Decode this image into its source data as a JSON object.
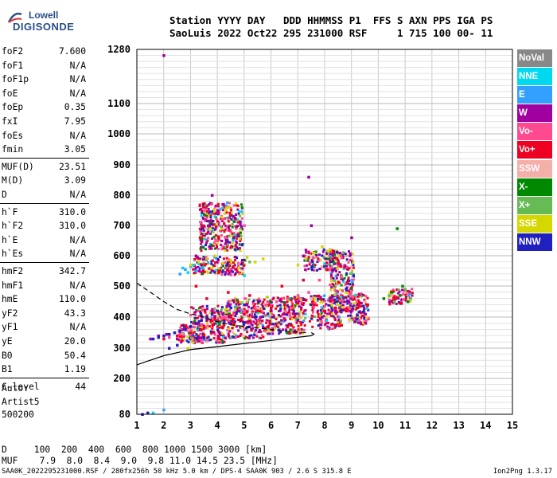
{
  "logo": {
    "line1": "Lowell",
    "line2": "DIGISONDE"
  },
  "header": {
    "line1": "Station YYYY DAY   DDD HHMMSS P1  FFS S AXN PPS IGA PS",
    "line2": "SaoLuis 2022 Oct22 295 231000 RSF     1 715 100 00- 11"
  },
  "params": [
    {
      "k": "foF2",
      "v": "7.600"
    },
    {
      "k": "foF1",
      "v": "N/A"
    },
    {
      "k": "foF1p",
      "v": "N/A"
    },
    {
      "k": "foE",
      "v": "N/A"
    },
    {
      "k": "foEp",
      "v": "0.35"
    },
    {
      "k": "fxI",
      "v": "7.95"
    },
    {
      "k": "foEs",
      "v": "N/A"
    },
    {
      "k": "fmin",
      "v": "3.05"
    },
    {
      "k": "MUF(D)",
      "v": "23.51"
    },
    {
      "k": "M(D)",
      "v": "3.09"
    },
    {
      "k": "D",
      "v": "N/A"
    },
    {
      "k": "h`F",
      "v": "310.0"
    },
    {
      "k": "h`F2",
      "v": "310.0"
    },
    {
      "k": "h`E",
      "v": "N/A"
    },
    {
      "k": "h`Es",
      "v": "N/A"
    },
    {
      "k": "hmF2",
      "v": "342.7"
    },
    {
      "k": "hmF1",
      "v": "N/A"
    },
    {
      "k": "hmE",
      "v": "110.0"
    },
    {
      "k": "yF2",
      "v": "43.3"
    },
    {
      "k": "yF1",
      "v": "N/A"
    },
    {
      "k": "yE",
      "v": "20.0"
    },
    {
      "k": "B0",
      "v": "50.4"
    },
    {
      "k": "B1",
      "v": "1.19"
    },
    {
      "k": "C-level",
      "v": "44"
    }
  ],
  "auto": {
    "line1": "Auto:",
    "line2": "Artist5",
    "line3": "500200"
  },
  "legend": [
    {
      "label": "NoVal",
      "color": "#888888"
    },
    {
      "label": "NNE",
      "color": "#00d8f0"
    },
    {
      "label": "E",
      "color": "#33a0ff"
    },
    {
      "label": "W",
      "color": "#a000a0"
    },
    {
      "label": "Vo-",
      "color": "#ff4a90"
    },
    {
      "label": "Vo+",
      "color": "#ee0022"
    },
    {
      "label": "SSW",
      "color": "#f4b0a8"
    },
    {
      "label": "X-",
      "color": "#008800"
    },
    {
      "label": "X+",
      "color": "#66bb55"
    },
    {
      "label": "SSE",
      "color": "#d6d600"
    },
    {
      "label": "NNW",
      "color": "#2020c0"
    }
  ],
  "dmuf": {
    "d_line": "D     100  200  400  600  800 1000 1500 3000 [km]",
    "muf_line": "MUF    7.9  8.0  8.4  9.0  9.8 11.0 14.5 23.5 [MHz]"
  },
  "footer": {
    "left": "SAA0K_2022295231000.RSF / 280fx256h 50 kHz 5.0 km / DPS-4 SAA0K 903 / 2.6 S 315.8 E",
    "right": "Ion2Png 1.3.17"
  },
  "chart_data": {
    "type": "scatter",
    "title": "",
    "xlabel": "",
    "ylabel": "",
    "x_ticks": [
      1,
      2,
      3,
      4,
      5,
      6,
      7,
      8,
      9,
      10,
      11,
      12,
      13,
      14,
      15
    ],
    "y_ticks": [
      80,
      200,
      300,
      400,
      500,
      600,
      700,
      800,
      900,
      1000,
      1100,
      1280
    ],
    "xlim": [
      1,
      15
    ],
    "ylim": [
      80,
      1280
    ],
    "grid": true,
    "series": [
      {
        "name": "NNE",
        "color": "#00d8f0",
        "x": [
          2.7,
          2.9,
          3.1,
          1.6,
          5.0
        ],
        "y": [
          560,
          545,
          570,
          85,
          535
        ]
      },
      {
        "name": "E",
        "color": "#33a0ff",
        "x": [
          2.8,
          3.0,
          3.2,
          2.6,
          2.0,
          3.4
        ],
        "y": [
          555,
          565,
          550,
          540,
          95,
          560
        ]
      },
      {
        "name": "W",
        "color": "#a000a0",
        "x": [
          1.5,
          1.8,
          2.1,
          2.4,
          2.7,
          3.0,
          3.3,
          3.6,
          3.9,
          4.2,
          4.5,
          4.8,
          5.1,
          5.4,
          3.7,
          4.0,
          4.3,
          4.6,
          3.4,
          3.8,
          4.2,
          2.0,
          2.5,
          3.2,
          5.6,
          6.0,
          6.5,
          7.0,
          7.4,
          7.9,
          8.4,
          8.9,
          9.0,
          7.2,
          7.5
        ],
        "y": [
          330,
          340,
          345,
          350,
          360,
          370,
          380,
          390,
          400,
          410,
          380,
          420,
          440,
          430,
          700,
          750,
          640,
          730,
          650,
          800,
          770,
          1260,
          330,
          600,
          400,
          420,
          410,
          390,
          860,
          400,
          420,
          450,
          660,
          600,
          700
        ]
      },
      {
        "name": "Vo-",
        "color": "#ff4a90",
        "x": [
          2.2,
          2.6,
          3.0,
          3.4,
          3.8,
          4.2,
          4.6,
          5.0,
          5.4,
          5.8,
          6.2,
          6.6,
          7.0,
          7.4,
          7.8,
          8.2,
          8.6,
          4.0,
          4.5,
          5.0
        ],
        "y": [
          335,
          345,
          355,
          375,
          395,
          400,
          410,
          420,
          430,
          440,
          450,
          460,
          470,
          480,
          520,
          560,
          600,
          650,
          680,
          700
        ]
      },
      {
        "name": "Vo+",
        "color": "#ee0022",
        "x": [
          2.0,
          2.5,
          3.0,
          3.5,
          4.0,
          4.5,
          5.0,
          5.5,
          6.0,
          6.5,
          7.0,
          7.3,
          7.6,
          8.0,
          8.4,
          8.8,
          9.2,
          9.6,
          3.2,
          3.6,
          4.4,
          5.2,
          6.4,
          7.2
        ],
        "y": [
          330,
          340,
          350,
          370,
          390,
          400,
          410,
          420,
          430,
          440,
          445,
          455,
          440,
          420,
          430,
          420,
          430,
          440,
          500,
          460,
          480,
          470,
          500,
          520
        ]
      },
      {
        "name": "SSW",
        "color": "#f4b0a8",
        "x": [
          3.5,
          5.5,
          7.5,
          9.5,
          10.5,
          11.0
        ],
        "y": [
          400,
          430,
          460,
          450,
          470,
          480
        ]
      },
      {
        "name": "X-",
        "color": "#008800",
        "x": [
          10.2,
          10.5,
          10.8,
          11.1,
          10.7,
          10.9
        ],
        "y": [
          460,
          480,
          470,
          450,
          690,
          500
        ]
      },
      {
        "name": "X+",
        "color": "#66bb55",
        "x": [
          10.4,
          10.6,
          11.0,
          11.2,
          4.8,
          5.2
        ],
        "y": [
          470,
          450,
          490,
          460,
          560,
          580
        ]
      },
      {
        "name": "SSE",
        "color": "#d6d600",
        "x": [
          3.0,
          3.3,
          3.6,
          3.9,
          4.2,
          4.5,
          4.8,
          5.1,
          5.4,
          5.7,
          7.0,
          7.3,
          7.6,
          7.9,
          8.2,
          2.9,
          3.8
        ],
        "y": [
          570,
          580,
          590,
          600,
          575,
          585,
          560,
          595,
          580,
          590,
          570,
          590,
          610,
          630,
          620,
          300,
          560
        ]
      },
      {
        "name": "NNW",
        "color": "#2020c0",
        "x": [
          1.2,
          1.4,
          1.6,
          1.8,
          2.0,
          2.2,
          2.4,
          2.6,
          2.8,
          3.0,
          3.2,
          3.4,
          3.6,
          3.8,
          4.0,
          4.5,
          5.0,
          2.2,
          2.5
        ],
        "y": [
          80,
          85,
          330,
          335,
          340,
          345,
          350,
          355,
          360,
          370,
          380,
          390,
          400,
          410,
          420,
          430,
          440,
          300,
          310
        ]
      }
    ],
    "profile_solid": {
      "x": [
        1.0,
        1.5,
        2.0,
        2.5,
        3.0,
        3.5,
        4.0,
        4.5,
        5.0,
        5.5,
        6.0,
        6.5,
        7.0,
        7.5,
        7.6,
        7.5
      ],
      "y": [
        245,
        260,
        275,
        285,
        295,
        300,
        305,
        310,
        315,
        320,
        325,
        330,
        335,
        340,
        345,
        350
      ]
    },
    "profile_dashed": {
      "x": [
        1.0,
        1.5,
        2.0,
        2.5,
        3.0,
        3.5,
        4.0,
        4.5,
        5.0,
        5.5,
        6.0,
        6.5,
        7.0,
        7.3
      ],
      "y": [
        510,
        480,
        450,
        425,
        410,
        400,
        385,
        375,
        370,
        365,
        360,
        355,
        352,
        350
      ]
    },
    "dense_clouds": [
      {
        "cx": 3.6,
        "cy": 380,
        "w": 1.3,
        "h": 120
      },
      {
        "cx": 5.0,
        "cy": 400,
        "w": 1.5,
        "h": 130
      },
      {
        "cx": 6.5,
        "cy": 410,
        "w": 1.5,
        "h": 120
      },
      {
        "cx": 8.0,
        "cy": 420,
        "w": 1.2,
        "h": 110
      },
      {
        "cx": 9.2,
        "cy": 430,
        "w": 0.8,
        "h": 100
      },
      {
        "cx": 3.0,
        "cy": 350,
        "w": 1.0,
        "h": 60
      },
      {
        "cx": 4.0,
        "cy": 570,
        "w": 2.0,
        "h": 60
      },
      {
        "cx": 7.8,
        "cy": 590,
        "w": 1.2,
        "h": 70
      },
      {
        "cx": 10.8,
        "cy": 470,
        "w": 0.9,
        "h": 50
      },
      {
        "cx": 4.1,
        "cy": 700,
        "w": 1.6,
        "h": 160
      },
      {
        "cx": 8.6,
        "cy": 520,
        "w": 0.9,
        "h": 200
      }
    ]
  }
}
